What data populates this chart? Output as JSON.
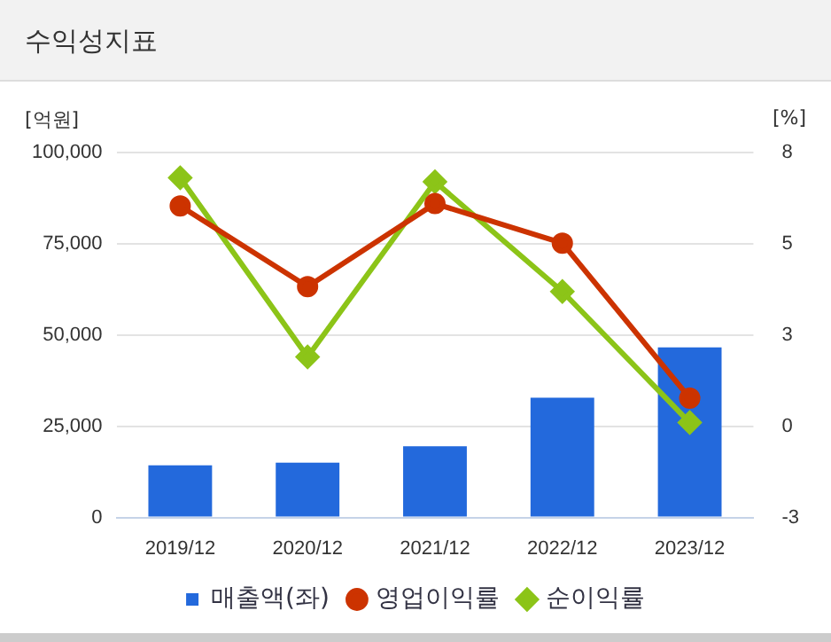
{
  "chart_data": {
    "type": "bar",
    "title": "수익성지표",
    "ylabel": "[억원]",
    "y2label": "[%]",
    "categories": [
      "2019/12",
      "2020/12",
      "2021/12",
      "2022/12",
      "2023/12"
    ],
    "series": [
      {
        "name": "매출액(좌)",
        "color": "#2369dc",
        "values": [
          14300,
          15000,
          19500,
          32800,
          46600
        ]
      },
      {
        "name": "영업이익률",
        "type": "line",
        "axis": "y2",
        "marker": "circle",
        "color": "#cc3300",
        "values": [
          6.39,
          3.96,
          6.46,
          5.27,
          0.6
        ]
      },
      {
        "name": "순이익률",
        "type": "line",
        "axis": "y2",
        "marker": "diamond",
        "color": "#8cc418",
        "values": [
          7.24,
          1.84,
          7.12,
          3.81,
          -0.14
        ]
      }
    ],
    "ylim": [
      0,
      100000
    ],
    "yticks": [
      {
        "value": 0,
        "label": "0"
      },
      {
        "value": 25000,
        "label": "25,000"
      },
      {
        "value": 50000,
        "label": "50,000"
      },
      {
        "value": 75000,
        "label": "75,000"
      },
      {
        "value": 100000,
        "label": "100,000"
      }
    ],
    "y2lim": [
      -3,
      8
    ],
    "y2ticks": [
      -3,
      {
        "value": -0.25,
        "label": "0"
      },
      {
        "value": 2.5,
        "label": "3"
      },
      {
        "value": 5.25,
        "label": "5"
      },
      8
    ],
    "grid": "y",
    "legend": "bottom"
  }
}
